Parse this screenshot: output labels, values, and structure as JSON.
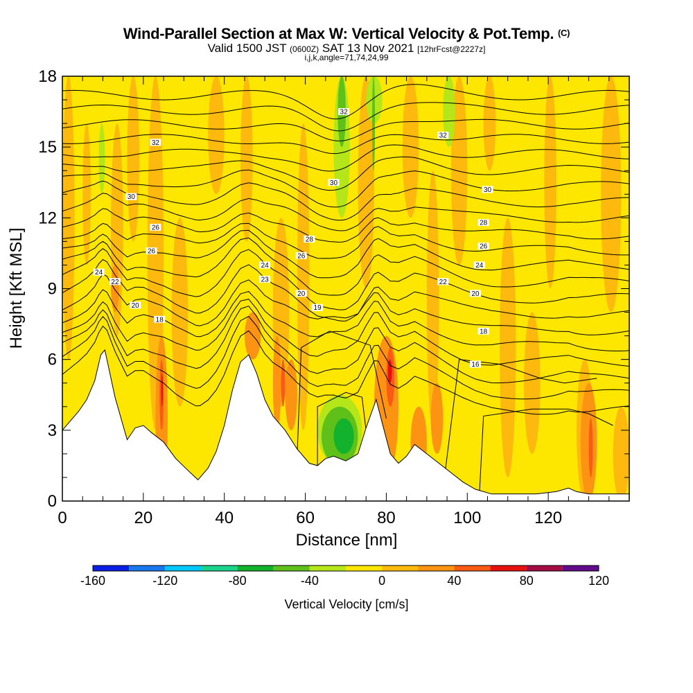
{
  "title": {
    "main": "Wind-Parallel Section at Max W: Vertical Velocity & Pot.Temp.",
    "main_mark": "(C)",
    "valid_prefix": "Valid 1500 JST",
    "valid_utc": "(0600Z)",
    "valid_date": "SAT 13 Nov 2021",
    "forecast": "[12hrFcst@2227z]",
    "indices": "i,j,k,angle=71,74,24,99"
  },
  "colorbar": {
    "label": "Vertical Velocity [cm/s]",
    "ticks": [
      "-160",
      "-120",
      "-80",
      "-40",
      "0",
      "40",
      "80",
      "120"
    ],
    "tick_values": [
      -160,
      -120,
      -80,
      -40,
      0,
      40,
      80,
      120
    ],
    "bins": [
      {
        "from": -160,
        "to": -140,
        "color": "#0a1ee6"
      },
      {
        "from": -140,
        "to": -120,
        "color": "#1a78ee"
      },
      {
        "from": -120,
        "to": -100,
        "color": "#00c8ff"
      },
      {
        "from": -100,
        "to": -80,
        "color": "#1ad38c"
      },
      {
        "from": -80,
        "to": -60,
        "color": "#12b22c"
      },
      {
        "from": -60,
        "to": -40,
        "color": "#5fc01a"
      },
      {
        "from": -40,
        "to": -20,
        "color": "#b4e61a"
      },
      {
        "from": -20,
        "to": 0,
        "color": "#fde600"
      },
      {
        "from": 0,
        "to": 20,
        "color": "#fdb90e"
      },
      {
        "from": 20,
        "to": 40,
        "color": "#fd9312"
      },
      {
        "from": 40,
        "to": 60,
        "color": "#fa5a14"
      },
      {
        "from": 60,
        "to": 80,
        "color": "#e6100c"
      },
      {
        "from": 80,
        "to": 100,
        "color": "#a40c44"
      },
      {
        "from": 100,
        "to": 120,
        "color": "#620c8c"
      }
    ]
  },
  "chart_data": {
    "type": "heatmap",
    "xlabel": "Distance [nm]",
    "ylabel": "Height [Kft MSL]",
    "xlim": [
      0,
      140
    ],
    "ylim": [
      0,
      18
    ],
    "xticks": [
      0,
      20,
      40,
      60,
      80,
      100,
      120
    ],
    "yticks": [
      0,
      3,
      6,
      9,
      12,
      15,
      18
    ],
    "x_minor_step": 5,
    "y_minor_step": 1,
    "terrain": [
      [
        0,
        3
      ],
      [
        2,
        3.4
      ],
      [
        4,
        3.8
      ],
      [
        6,
        4.3
      ],
      [
        8,
        5.1
      ],
      [
        9.5,
        6.2
      ],
      [
        10.5,
        6.4
      ],
      [
        11.5,
        5.6
      ],
      [
        13,
        4.4
      ],
      [
        15,
        3.2
      ],
      [
        16,
        2.6
      ],
      [
        18,
        3.1
      ],
      [
        20,
        3.2
      ],
      [
        22,
        2.9
      ],
      [
        25,
        2.5
      ],
      [
        28,
        1.8
      ],
      [
        31,
        1.3
      ],
      [
        33.5,
        0.9
      ],
      [
        36,
        1.4
      ],
      [
        38,
        2.1
      ],
      [
        40,
        3.2
      ],
      [
        42,
        4.7
      ],
      [
        44,
        5.9
      ],
      [
        46,
        6.2
      ],
      [
        48,
        5.4
      ],
      [
        50,
        4.3
      ],
      [
        52,
        3.6
      ],
      [
        55,
        3
      ],
      [
        58,
        2.2
      ],
      [
        61,
        1.6
      ],
      [
        63,
        1.5
      ],
      [
        65,
        1.8
      ],
      [
        67,
        1.9
      ],
      [
        70,
        1.7
      ],
      [
        73,
        2
      ],
      [
        75,
        3.1
      ],
      [
        77.5,
        4.3
      ],
      [
        79,
        3.3
      ],
      [
        81,
        2
      ],
      [
        83,
        1.6
      ],
      [
        85,
        1.9
      ],
      [
        87,
        2.4
      ],
      [
        90,
        2
      ],
      [
        93,
        1.6
      ],
      [
        96,
        1.2
      ],
      [
        99,
        0.8
      ],
      [
        102,
        0.5
      ],
      [
        106,
        0.3
      ],
      [
        112,
        0.3
      ],
      [
        117,
        0.3
      ],
      [
        122,
        0.4
      ],
      [
        125,
        0.55
      ],
      [
        127,
        0.4
      ],
      [
        130,
        0.3
      ],
      [
        140,
        0.3
      ]
    ],
    "theta_labels": [
      {
        "value": "32",
        "x": 23,
        "y": 15.2
      },
      {
        "value": "30",
        "x": 17,
        "y": 12.9
      },
      {
        "value": "26",
        "x": 23,
        "y": 11.6
      },
      {
        "value": "26",
        "x": 22,
        "y": 10.6
      },
      {
        "value": "24",
        "x": 9,
        "y": 9.7
      },
      {
        "value": "22",
        "x": 13,
        "y": 9.3
      },
      {
        "value": "20",
        "x": 18,
        "y": 8.3
      },
      {
        "value": "18",
        "x": 24,
        "y": 7.7
      },
      {
        "value": "32",
        "x": 69.5,
        "y": 16.5
      },
      {
        "value": "30",
        "x": 67,
        "y": 13.5
      },
      {
        "value": "28",
        "x": 61,
        "y": 11.1
      },
      {
        "value": "26",
        "x": 59,
        "y": 10.4
      },
      {
        "value": "24",
        "x": 50,
        "y": 10
      },
      {
        "value": "23",
        "x": 50,
        "y": 9.4
      },
      {
        "value": "20",
        "x": 59,
        "y": 8.8
      },
      {
        "value": "19",
        "x": 63,
        "y": 8.2
      },
      {
        "value": "32",
        "x": 94,
        "y": 15.5
      },
      {
        "value": "30",
        "x": 105,
        "y": 13.2
      },
      {
        "value": "28",
        "x": 104,
        "y": 11.8
      },
      {
        "value": "26",
        "x": 104,
        "y": 10.8
      },
      {
        "value": "24",
        "x": 103,
        "y": 10
      },
      {
        "value": "22",
        "x": 94,
        "y": 9.3
      },
      {
        "value": "20",
        "x": 102,
        "y": 8.8
      },
      {
        "value": "18",
        "x": 104,
        "y": 7.2
      },
      {
        "value": "16",
        "x": 102,
        "y": 5.8
      }
    ],
    "grid": false
  }
}
